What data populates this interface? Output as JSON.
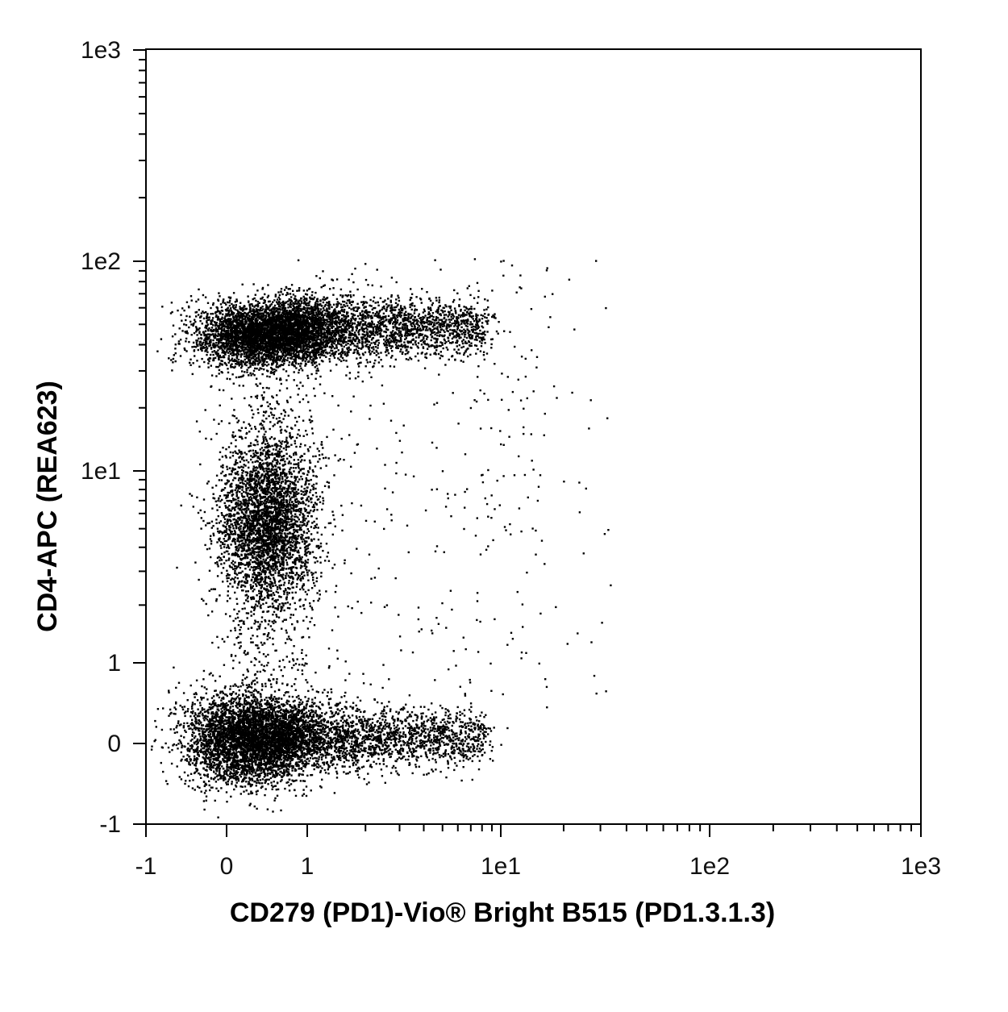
{
  "chart_data": {
    "type": "scatter",
    "subtype": "flow-cytometry-dot-plot",
    "xlabel": "CD279 (PD1)-Vio® Bright B515 (PD1.3.1.3)",
    "ylabel": "CD4-APC (REA623)",
    "x_scale": "biexponential",
    "y_scale": "biexponential",
    "xlim": [
      -1,
      1000
    ],
    "ylim": [
      -1,
      1000
    ],
    "x_ticks": [
      {
        "value": -1,
        "label": "-1"
      },
      {
        "value": 0,
        "label": "0"
      },
      {
        "value": 1,
        "label": "1"
      },
      {
        "value": 10,
        "label": "1e1"
      },
      {
        "value": 100,
        "label": "1e2"
      },
      {
        "value": 1000,
        "label": "1e3"
      }
    ],
    "y_ticks": [
      {
        "value": -1,
        "label": "-1"
      },
      {
        "value": 0,
        "label": "0"
      },
      {
        "value": 1,
        "label": "1"
      },
      {
        "value": 10,
        "label": "1e1"
      },
      {
        "value": 100,
        "label": "1e2"
      },
      {
        "value": 1000,
        "label": "1e3"
      }
    ],
    "grid": false,
    "legend": "none",
    "point_color": "#000000",
    "populations": [
      {
        "x_center": 0.5,
        "y_center": 45,
        "x_range": [
          -0.5,
          8
        ],
        "y_range": [
          25,
          90
        ],
        "density": "high"
      },
      {
        "x_center": 0.5,
        "y_center": 6,
        "x_range": [
          -0.3,
          1.5
        ],
        "y_range": [
          1.5,
          12
        ],
        "density": "high"
      },
      {
        "x_center": 0.3,
        "y_center": 0,
        "x_range": [
          -0.5,
          8
        ],
        "y_range": [
          -0.6,
          0.8
        ],
        "density": "high"
      }
    ]
  }
}
